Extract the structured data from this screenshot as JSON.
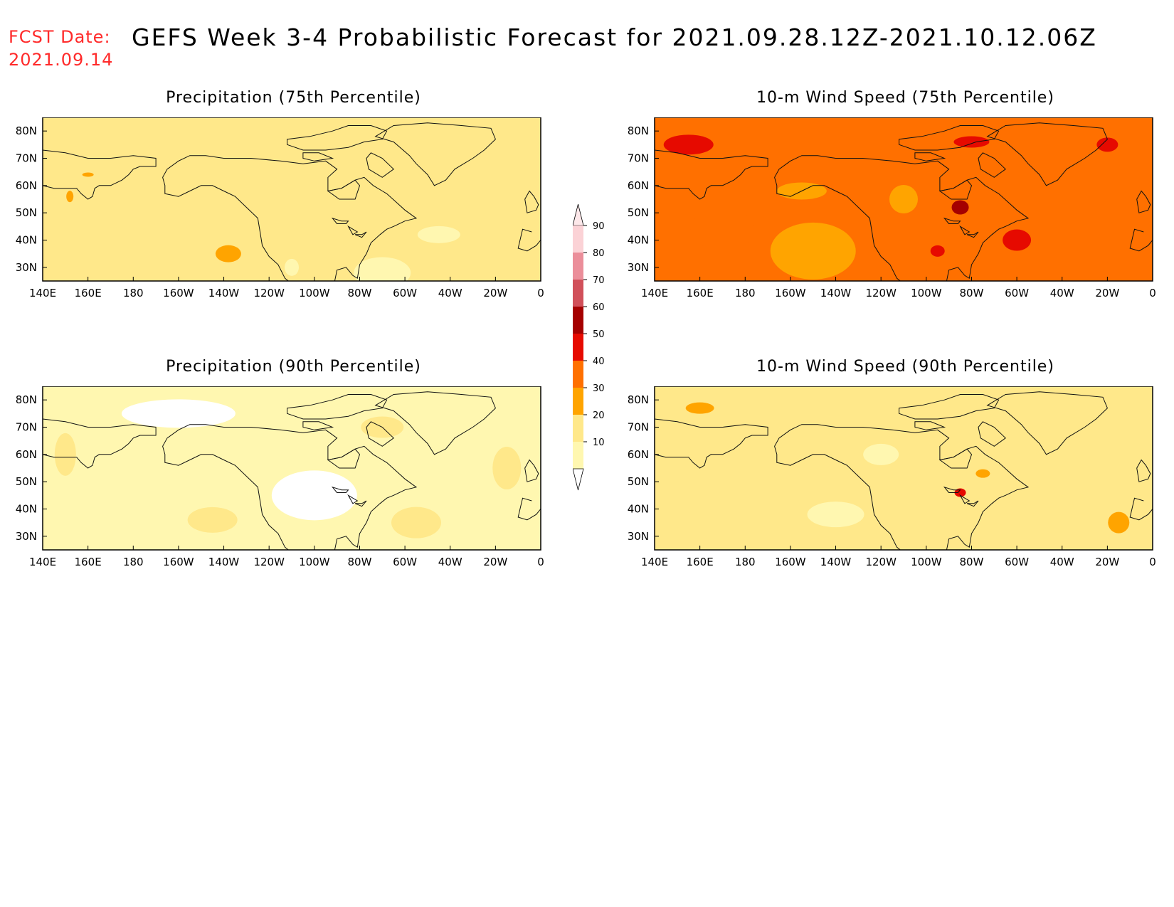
{
  "header": {
    "fcst_label": "FCST Date:",
    "fcst_date": "2021.09.14",
    "title": "GEFS Week 3-4 Probabilistic Forecast for 2021.09.28.12Z-2021.10.12.06Z"
  },
  "axes": {
    "lat_labels": [
      "80N",
      "70N",
      "60N",
      "50N",
      "40N",
      "30N"
    ],
    "lon_labels": [
      "140E",
      "160E",
      "180",
      "160W",
      "140W",
      "120W",
      "100W",
      "80W",
      "60W",
      "40W",
      "20W",
      "0"
    ]
  },
  "panels": [
    {
      "title": "Precipitation (75th Percentile)",
      "base_level": 20
    },
    {
      "title": "10-m Wind Speed (75th Percentile)",
      "base_level": 40
    },
    {
      "title": "Precipitation (90th Percentile)",
      "base_level": 10
    },
    {
      "title": "10-m Wind Speed (90th Percentile)",
      "base_level": 20
    }
  ],
  "colorbar": {
    "labels": [
      "90",
      "80",
      "70",
      "60",
      "50",
      "40",
      "30",
      "20",
      "10"
    ],
    "colors": {
      "10": "#fff7b0",
      "20": "#ffe88a",
      "30": "#ffa400",
      "40": "#ff7000",
      "50": "#e60a00",
      "60": "#a50000",
      "70": "#d1505a",
      "80": "#eb8e9a",
      "90": "#fbd2d6"
    }
  }
}
